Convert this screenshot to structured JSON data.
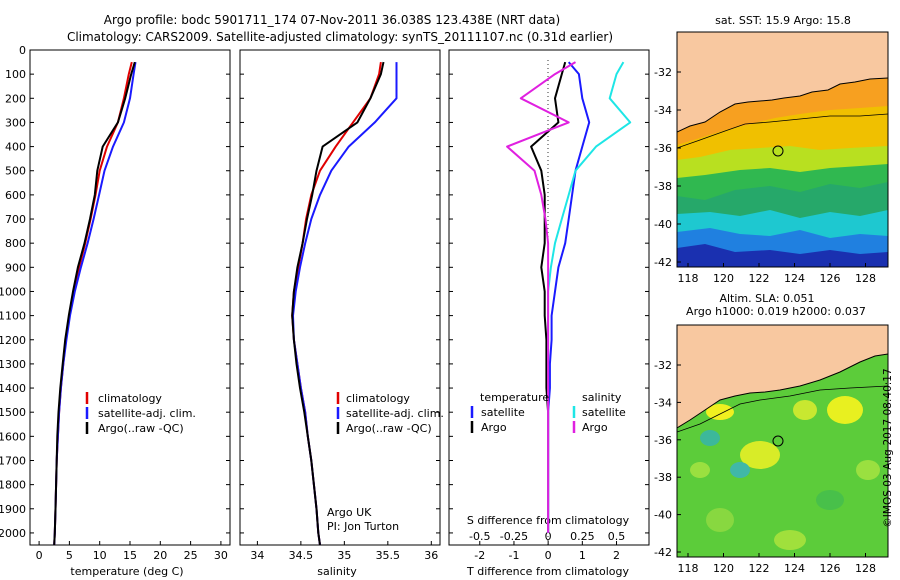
{
  "header": {
    "line1": "Argo profile: bodc 5901711_174 07-Nov-2011 36.038S 123.438E (NRT data)",
    "line2": "Climatology: CARS2009. Satellite-adjusted climatology: synTS_20111107.nc (0.31d earlier)"
  },
  "side_stamp": "©IMOS 03-Aug-2017 08:40:17",
  "colors": {
    "climatology": "#e00000",
    "satellite": "#1a1aff",
    "argo": "#000000",
    "sal_satellite": "#1ee6e6",
    "sal_argo": "#e020e0",
    "land": "#f8c8a0"
  },
  "depth_axis": {
    "ticks": [
      0,
      100,
      200,
      300,
      400,
      500,
      600,
      700,
      800,
      900,
      1000,
      1100,
      1200,
      1300,
      1400,
      1500,
      1600,
      1700,
      1800,
      1900,
      2000
    ],
    "range": [
      0,
      2050
    ]
  },
  "panels": {
    "temperature": {
      "xlabel": "temperature (deg C)",
      "ticks": [
        "0",
        "5",
        "10",
        "15",
        "20",
        "25",
        "30"
      ],
      "legend": [
        "climatology",
        "satellite-adj. clim.",
        "Argo(..raw -QC)"
      ]
    },
    "salinity": {
      "xlabel": "salinity",
      "ticks": [
        "34",
        "34.5",
        "35",
        "35.5",
        "36"
      ],
      "legend": [
        "climatology",
        "satellite-adj. clim.",
        "Argo(..raw -QC)"
      ],
      "note1": "Argo UK",
      "note2": "PI: Jon Turton"
    },
    "difference": {
      "xlabel": "T difference from climatology",
      "top_label": "S difference from climatology",
      "ticks_bottom": [
        "-2",
        "-1",
        "0",
        "1",
        "2"
      ],
      "ticks_top": [
        "-0.5",
        "-0.25",
        "0",
        "0.25",
        "0.5"
      ],
      "legend_temp_title": "temperature",
      "legend_sal_title": "salinity",
      "legend_temp": [
        "satellite",
        "Argo"
      ],
      "legend_sal": [
        "satellite",
        "Argo"
      ]
    }
  },
  "maps": {
    "sst": {
      "title": "sat. SST: 15.9 Argo: 15.8",
      "lat_ticks": [
        "-32",
        "-34",
        "-36",
        "-38",
        "-40",
        "-42"
      ],
      "lon_ticks": [
        "118",
        "120",
        "122",
        "124",
        "126",
        "128"
      ]
    },
    "sla": {
      "title1": "Altim. SLA: 0.051",
      "title2": "Argo h1000: 0.019 h2000: 0.037",
      "lat_ticks": [
        "-32",
        "-34",
        "-36",
        "-38",
        "-40",
        "-42"
      ],
      "lon_ticks": [
        "118",
        "120",
        "122",
        "124",
        "126",
        "128"
      ]
    }
  },
  "chart_data": [
    {
      "type": "line",
      "name": "temperature profile",
      "xlabel": "temperature (deg C)",
      "ylabel": "",
      "xlim": [
        -1.5,
        31.5
      ],
      "ylim": [
        2050,
        0
      ],
      "series": [
        {
          "name": "climatology",
          "x": [
            15.3,
            14.8,
            14.0,
            13.0,
            11.2,
            10.0,
            9.3,
            8.5,
            7.6,
            6.6,
            5.7,
            5.0,
            4.4,
            4.0,
            3.6,
            3.3,
            3.1,
            2.9,
            2.8,
            2.7,
            2.6,
            2.5
          ],
          "y": [
            50,
            100,
            200,
            300,
            400,
            500,
            600,
            700,
            800,
            900,
            1000,
            1100,
            1200,
            1300,
            1400,
            1500,
            1600,
            1700,
            1800,
            1900,
            2000,
            2050
          ]
        },
        {
          "name": "satellite-adj. clim.",
          "x": [
            15.9,
            15.6,
            15.0,
            14.0,
            12.2,
            10.8,
            9.9,
            9.0,
            8.0,
            6.9,
            5.9,
            5.1,
            4.5,
            4.0,
            3.6,
            3.3,
            3.1,
            2.9,
            2.8,
            2.7,
            2.6,
            2.5
          ],
          "y": [
            50,
            100,
            200,
            300,
            400,
            500,
            600,
            700,
            800,
            900,
            1000,
            1100,
            1200,
            1300,
            1400,
            1500,
            1600,
            1700,
            1800,
            1900,
            2000,
            2050
          ]
        },
        {
          "name": "Argo(..raw -QC)",
          "x": [
            15.8,
            15.2,
            14.2,
            13.0,
            10.5,
            9.6,
            9.2,
            8.4,
            7.5,
            6.4,
            5.6,
            4.9,
            4.3,
            3.9,
            3.5,
            3.2,
            3.0,
            2.9,
            2.8,
            2.7,
            2.6,
            2.5
          ],
          "y": [
            50,
            100,
            200,
            300,
            400,
            500,
            600,
            700,
            800,
            900,
            1000,
            1100,
            1200,
            1300,
            1400,
            1500,
            1600,
            1700,
            1800,
            1900,
            2000,
            2050
          ]
        }
      ]
    },
    {
      "type": "line",
      "name": "salinity profile",
      "xlabel": "salinity",
      "ylabel": "",
      "xlim": [
        33.8,
        36.1
      ],
      "ylim": [
        2050,
        0
      ],
      "series": [
        {
          "name": "climatology",
          "x": [
            35.42,
            35.4,
            35.3,
            35.1,
            34.9,
            34.72,
            34.62,
            34.56,
            34.52,
            34.47,
            34.42,
            34.4,
            34.42,
            34.46,
            34.5,
            34.55,
            34.58,
            34.62,
            34.65,
            34.68,
            34.7,
            34.72
          ],
          "y": [
            50,
            100,
            200,
            300,
            400,
            500,
            600,
            700,
            800,
            900,
            1000,
            1100,
            1200,
            1300,
            1400,
            1500,
            1600,
            1700,
            1800,
            1900,
            2000,
            2050
          ]
        },
        {
          "name": "satellite-adj. clim.",
          "x": [
            35.6,
            35.6,
            35.6,
            35.35,
            35.05,
            34.85,
            34.72,
            34.62,
            34.55,
            34.49,
            34.44,
            34.41,
            34.42,
            34.46,
            34.5,
            34.55,
            34.58,
            34.62,
            34.65,
            34.68,
            34.7,
            34.72
          ],
          "y": [
            50,
            100,
            200,
            300,
            400,
            500,
            600,
            700,
            800,
            900,
            1000,
            1100,
            1200,
            1300,
            1400,
            1500,
            1600,
            1700,
            1800,
            1900,
            2000,
            2050
          ]
        },
        {
          "name": "Argo(..raw -QC)",
          "x": [
            35.45,
            35.42,
            35.3,
            35.15,
            34.75,
            34.68,
            34.63,
            34.57,
            34.52,
            34.46,
            34.42,
            34.4,
            34.42,
            34.45,
            34.49,
            34.54,
            34.58,
            34.62,
            34.65,
            34.68,
            34.7,
            34.72
          ],
          "y": [
            50,
            100,
            200,
            300,
            400,
            500,
            600,
            700,
            800,
            900,
            1000,
            1100,
            1200,
            1300,
            1400,
            1500,
            1600,
            1700,
            1800,
            1900,
            2000,
            2050
          ]
        }
      ]
    },
    {
      "type": "line",
      "name": "difference from climatology",
      "xlabel": "T difference from climatology",
      "ylabel": "",
      "xlim": [
        -2.9,
        2.95
      ],
      "ylim": [
        2050,
        0
      ],
      "series": [
        {
          "name": "temperature satellite",
          "x": [
            0.6,
            0.9,
            1.0,
            1.2,
            1.0,
            0.8,
            0.7,
            0.6,
            0.5,
            0.3,
            0.2,
            0.1,
            0.1,
            0.05,
            0.05,
            0.0,
            0.0,
            0.0,
            0.0,
            0.0,
            0.0
          ],
          "y": [
            50,
            100,
            200,
            300,
            400,
            500,
            600,
            700,
            800,
            900,
            1000,
            1100,
            1200,
            1300,
            1400,
            1500,
            1600,
            1700,
            1800,
            1900,
            2000
          ]
        },
        {
          "name": "temperature Argo",
          "x": [
            0.5,
            0.4,
            0.2,
            0.3,
            -0.5,
            -0.2,
            -0.1,
            -0.1,
            -0.1,
            -0.2,
            -0.1,
            -0.1,
            -0.05,
            -0.05,
            -0.05,
            0.0,
            0.0,
            0.0,
            0.0,
            0.0,
            0.0
          ],
          "y": [
            50,
            100,
            200,
            300,
            400,
            500,
            600,
            700,
            800,
            900,
            1000,
            1100,
            1200,
            1300,
            1400,
            1500,
            1600,
            1700,
            1800,
            1900,
            2000
          ]
        },
        {
          "name": "salinity satellite",
          "x": [
            0.55,
            0.5,
            0.45,
            0.6,
            0.35,
            0.2,
            0.15,
            0.1,
            0.05,
            0.02,
            0.0,
            0.0,
            0.0,
            0.0,
            0.0,
            0.0,
            0.0,
            0.0,
            0.0,
            0.0,
            0.0
          ],
          "y": [
            50,
            100,
            200,
            300,
            400,
            500,
            600,
            700,
            800,
            900,
            1000,
            1100,
            1200,
            1300,
            1400,
            1500,
            1600,
            1700,
            1800,
            1900,
            2000
          ]
        },
        {
          "name": "salinity Argo",
          "x": [
            0.2,
            0.05,
            -0.2,
            0.15,
            -0.3,
            -0.1,
            -0.05,
            -0.02,
            0.0,
            0.0,
            0.0,
            0.0,
            0.0,
            0.0,
            0.0,
            0.0,
            0.0,
            0.0,
            0.0,
            0.0,
            0.0
          ],
          "y": [
            50,
            100,
            200,
            300,
            400,
            500,
            600,
            700,
            800,
            900,
            1000,
            1100,
            1200,
            1300,
            1400,
            1500,
            1600,
            1700,
            1800,
            1900,
            2000
          ]
        }
      ]
    }
  ]
}
